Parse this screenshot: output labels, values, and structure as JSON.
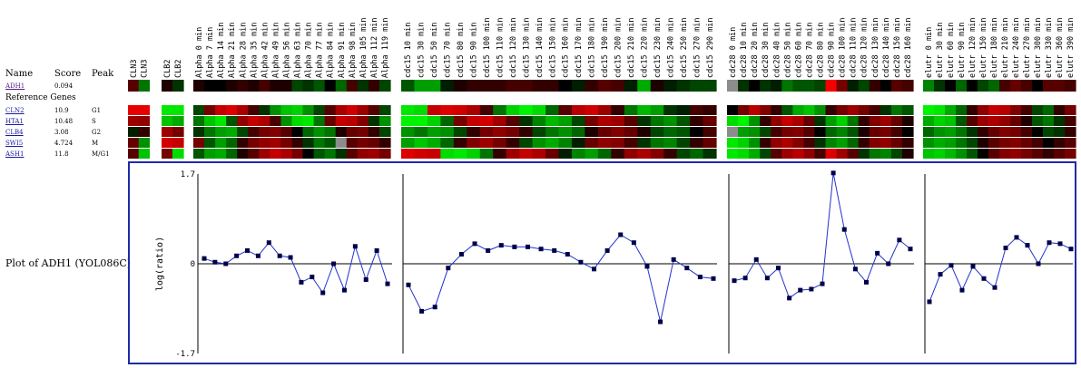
{
  "table": {
    "name_header": "Name",
    "score_header": "Score",
    "peak_header": "Peak",
    "reference_genes_label": "Reference Genes",
    "query": {
      "name": "ADH1",
      "score": "0.094",
      "peak": ""
    },
    "reference": [
      {
        "name": "CLN2",
        "score": "10.9",
        "peak": "G1"
      },
      {
        "name": "HTA1",
        "score": "10.48",
        "peak": "S"
      },
      {
        "name": "CLB4",
        "score": "3.08",
        "peak": "G2"
      },
      {
        "name": "SWI5",
        "score": "4.724",
        "peak": "M"
      },
      {
        "name": "ASH1",
        "score": "11.8",
        "peak": "M/G1"
      }
    ]
  },
  "plot_label": "Plot of ADH1 (YOL086C)",
  "colors": {
    "frame": "#1e2aa8",
    "line": "#2233cc",
    "marker": "#00004a"
  },
  "header_groups": [
    {
      "id": "cln3",
      "labels": [
        "CLN3",
        "CLN3"
      ]
    },
    {
      "id": "clb2",
      "labels": [
        "CLB2",
        "CLB2"
      ]
    },
    {
      "id": "alpha",
      "labels": [
        "Alpha 0 min",
        "Alpha 7 min",
        "Alpha 14 min",
        "Alpha 21 min",
        "Alpha 28 min",
        "Alpha 35 min",
        "Alpha 42 min",
        "Alpha 49 min",
        "Alpha 56 min",
        "Alpha 63 min",
        "Alpha 70 min",
        "Alpha 77 min",
        "Alpha 84 min",
        "Alpha 91 min",
        "Alpha 98 min",
        "Alpha 105 min",
        "Alpha 112 min",
        "Alpha 119 min"
      ]
    },
    {
      "id": "cdc15",
      "labels": [
        "cdc15 10 min",
        "cdc15 30 min",
        "cdc15 50 min",
        "cdc15 70 min",
        "cdc15 80 min",
        "cdc15 90 min",
        "cdc15 100 min",
        "cdc15 110 min",
        "cdc15 120 min",
        "cdc15 130 min",
        "cdc15 140 min",
        "cdc15 150 min",
        "cdc15 160 min",
        "cdc15 170 min",
        "cdc15 180 min",
        "cdc15 190 min",
        "cdc15 200 min",
        "cdc15 210 min",
        "cdc15 220 min",
        "cdc15 230 min",
        "cdc15 240 min",
        "cdc15 250 min",
        "cdc15 270 min",
        "cdc15 290 min"
      ]
    },
    {
      "id": "cdc28",
      "labels": [
        "cdc28 0 min",
        "cdc28 10 min",
        "cdc28 20 min",
        "cdc28 30 min",
        "cdc28 40 min",
        "cdc28 50 min",
        "cdc28 60 min",
        "cdc28 70 min",
        "cdc28 80 min",
        "cdc28 90 min",
        "cdc28 100 min",
        "cdc28 110 min",
        "cdc28 120 min",
        "cdc28 130 min",
        "cdc28 140 min",
        "cdc28 150 min",
        "cdc28 160 min"
      ]
    },
    {
      "id": "elutr",
      "labels": [
        "elutr 0 min",
        "elutr 30 min",
        "elutr 60 min",
        "elutr 90 min",
        "elutr 120 min",
        "elutr 150 min",
        "elutr 180 min",
        "elutr 210 min",
        "elutr 240 min",
        "elutr 270 min",
        "elutr 300 min",
        "elutr 330 min",
        "elutr 360 min",
        "elutr 390 min"
      ]
    }
  ],
  "heatmap": {
    "scale_max": 1.7,
    "rows": [
      {
        "gene": "ADH1",
        "values": {
          "cln3": [
            0.4,
            -0.6
          ],
          "clb2": [
            0.1,
            -0.2
          ],
          "alpha": [
            0.1,
            0.0,
            0.0,
            0.1,
            0.2,
            0.1,
            0.3,
            0.1,
            0.1,
            -0.3,
            -0.2,
            -0.4,
            0.0,
            -0.5,
            0.3,
            -0.2,
            0.2,
            -0.3
          ],
          "cdc15": [
            -0.4,
            -0.9,
            -0.9,
            -0.1,
            0.1,
            0.2,
            0.2,
            0.2,
            0.3,
            0.3,
            0.2,
            0.2,
            0.0,
            -0.1,
            0.2,
            0.4,
            0.3,
            -0.1,
            -1.0,
            0.1,
            -0.1,
            -0.2,
            -0.3,
            -0.3
          ],
          "cdc28": [
            -0.3,
            -0.2,
            0.0,
            -0.2,
            -0.1,
            -0.6,
            -0.4,
            -0.4,
            -0.3,
            1.6,
            0.6,
            -0.1,
            -0.3,
            0.2,
            0.0,
            0.4,
            0.3
          ],
          "elutr": [
            -0.7,
            -0.2,
            -0.0,
            -0.5,
            0.0,
            -0.3,
            -0.5,
            0.3,
            0.5,
            0.3,
            0.0,
            0.4,
            0.4,
            0.3
          ]
        }
      },
      {
        "gene": "CLN2",
        "values": {
          "cln3": [
            1.5,
            1.5
          ],
          "clb2": [
            -1.5,
            -1.5
          ],
          "alpha": [
            -0.3,
            0.6,
            1.2,
            1.4,
            1.0,
            0.3,
            -0.2,
            -0.8,
            -1.2,
            -1.3,
            -0.8,
            -0.3,
            0.4,
            1.0,
            1.3,
            0.9,
            0.4,
            -0.3
          ],
          "cdc15": [
            -1.5,
            -1.4,
            1.2,
            1.4,
            1.3,
            1.0,
            0.3,
            -0.6,
            -1.3,
            -1.6,
            -1.4,
            -0.5,
            0.4,
            1.1,
            1.3,
            0.9,
            0.2,
            -0.6,
            -1.1,
            -0.9,
            -0.2,
            -0.1,
            0.3,
            0.2
          ],
          "cdc28": [
            0.0,
            0.6,
            1.1,
            0.7,
            0.2,
            -0.4,
            -1.0,
            -1.2,
            -0.8,
            0.2,
            0.6,
            0.9,
            0.6,
            0.3,
            -0.2,
            -0.6,
            -0.4
          ],
          "elutr": [
            -1.6,
            -1.5,
            -1.0,
            -0.5,
            0.2,
            0.8,
            1.2,
            1.1,
            0.7,
            0.3,
            -0.3,
            -0.5,
            0.2,
            0.6
          ]
        }
      },
      {
        "gene": "HTA1",
        "values": {
          "cln3": [
            0.9,
            0.8
          ],
          "clb2": [
            -1.2,
            -1.0
          ],
          "alpha": [
            -0.6,
            -1.2,
            -1.5,
            -0.4,
            0.8,
            1.2,
            1.0,
            0.3,
            -0.8,
            -1.4,
            -1.5,
            -0.6,
            0.5,
            1.2,
            1.1,
            0.7,
            -0.2,
            -0.8
          ],
          "cdc15": [
            -1.6,
            -1.6,
            -1.3,
            -0.5,
            0.6,
            1.2,
            1.3,
            0.9,
            0.4,
            -0.2,
            -0.7,
            -1.1,
            -0.9,
            -0.3,
            0.6,
            1.0,
            0.9,
            0.4,
            -0.2,
            -0.6,
            -0.8,
            -0.4,
            0.2,
            0.5
          ],
          "cdc28": [
            -1.4,
            -1.6,
            -0.8,
            0.2,
            0.8,
            1.2,
            1.0,
            0.5,
            -0.2,
            -0.9,
            -1.3,
            -0.6,
            0.2,
            0.7,
            0.9,
            0.5,
            0.1
          ],
          "elutr": [
            -1.0,
            -1.3,
            -1.2,
            -0.4,
            0.4,
            0.9,
            1.0,
            0.8,
            0.5,
            0.1,
            -0.4,
            -0.6,
            -0.2,
            0.3
          ]
        }
      },
      {
        "gene": "CLB4",
        "values": {
          "cln3": [
            -0.1,
            0.2
          ],
          "clb2": [
            0.9,
            0.6
          ],
          "alpha": [
            -0.2,
            -0.6,
            -0.9,
            -1.0,
            -0.3,
            0.3,
            0.6,
            0.7,
            0.4,
            0.0,
            -0.5,
            -0.8,
            -0.6,
            0.1,
            0.5,
            0.6,
            0.2,
            -0.3
          ],
          "cdc15": [
            -0.8,
            -0.6,
            -0.9,
            -0.8,
            -0.3,
            0.2,
            0.6,
            0.8,
            0.6,
            0.2,
            -0.3,
            -0.6,
            -0.8,
            -0.5,
            0.1,
            0.5,
            0.7,
            0.5,
            0.1,
            -0.3,
            -0.5,
            -0.4,
            0.0,
            0.3
          ],
          "cdc28": [
            -0.5,
            -0.9,
            -0.8,
            -0.3,
            0.3,
            0.6,
            0.7,
            0.4,
            0.0,
            -0.5,
            -0.7,
            -0.4,
            0.1,
            0.5,
            0.6,
            0.3,
            0.0
          ],
          "elutr": [
            -0.5,
            -0.8,
            -0.9,
            -0.6,
            -0.2,
            0.2,
            0.5,
            0.7,
            0.6,
            0.3,
            0.0,
            -0.3,
            -0.2,
            0.2
          ]
        }
      },
      {
        "gene": "SWI5",
        "values": {
          "cln3": [
            0.5,
            -0.8
          ],
          "clb2": [
            1.3,
            1.2
          ],
          "alpha": [
            0.6,
            -0.4,
            -0.9,
            -0.5,
            0.2,
            0.6,
            0.8,
            0.9,
            0.6,
            0.2,
            -0.2,
            -0.6,
            -0.4,
            0.0,
            0.4,
            0.6,
            0.5,
            0.2
          ],
          "cdc15": [
            -0.9,
            -1.2,
            -1.0,
            -0.5,
            0.2,
            0.7,
            0.9,
            0.6,
            0.2,
            -0.3,
            -0.8,
            -1.0,
            -0.7,
            -0.1,
            0.5,
            0.8,
            0.7,
            0.3,
            -0.2,
            -0.6,
            -0.7,
            -0.3,
            0.2,
            0.5
          ],
          "cdc28": [
            -1.5,
            -1.3,
            -0.8,
            0.2,
            0.8,
            1.0,
            0.7,
            0.3,
            -0.2,
            -0.7,
            -0.9,
            -0.5,
            0.2,
            0.7,
            0.8,
            0.5,
            0.2
          ],
          "elutr": [
            -0.8,
            -1.0,
            -0.9,
            -0.6,
            -0.3,
            0.1,
            0.4,
            0.6,
            0.7,
            0.5,
            0.3,
            0.0,
            0.2,
            0.4
          ]
        }
      },
      {
        "gene": "ASH1",
        "values": {
          "cln3": [
            0.4,
            -1.2
          ],
          "clb2": [
            0.6,
            -1.4
          ],
          "alpha": [
            -0.4,
            -0.9,
            -1.0,
            -0.5,
            0.1,
            0.4,
            0.9,
            1.2,
            1.0,
            0.6,
            0.0,
            -0.4,
            -0.6,
            -0.2,
            0.4,
            0.8,
            0.9,
            0.6
          ],
          "cdc15": [
            1.4,
            1.3,
            1.2,
            -1.4,
            -1.5,
            -1.3,
            -0.6,
            0.2,
            0.9,
            1.2,
            1.0,
            0.5,
            -0.1,
            -0.7,
            -0.9,
            -0.5,
            0.2,
            0.8,
            1.0,
            0.7,
            0.2,
            -0.3,
            -0.5,
            -0.2
          ],
          "cdc28": [
            -1.5,
            -1.4,
            -1.0,
            -0.3,
            0.4,
            0.9,
            1.1,
            0.8,
            0.3,
            1.4,
            0.9,
            0.4,
            -0.2,
            -0.6,
            -0.7,
            -0.3,
            0.1
          ],
          "elutr": [
            -1.2,
            -1.3,
            -1.1,
            -0.8,
            -0.4,
            0.0,
            0.4,
            0.7,
            0.8,
            0.6,
            0.4,
            0.2,
            0.4,
            0.6
          ]
        }
      }
    ],
    "missing": [
      {
        "row": 0,
        "group": "cdc28",
        "index": 0
      },
      {
        "row": 3,
        "group": "cdc28",
        "index": 0
      },
      {
        "row": 4,
        "group": "alpha",
        "index": 13
      }
    ]
  },
  "chart_data": {
    "type": "line",
    "ylabel": "log(ratio)",
    "ylim": [
      -1.7,
      1.7
    ],
    "yticks": [
      "1.7",
      "0",
      "-1.7"
    ],
    "panels": [
      {
        "id": "alpha",
        "values": [
          0.1,
          0.03,
          0.0,
          0.15,
          0.25,
          0.15,
          0.4,
          0.15,
          0.12,
          -0.35,
          -0.25,
          -0.55,
          0.0,
          -0.5,
          0.33,
          -0.3,
          0.25,
          -0.38
        ]
      },
      {
        "id": "cdc15",
        "values": [
          -0.4,
          -0.9,
          -0.82,
          -0.08,
          0.18,
          0.38,
          0.25,
          0.35,
          0.32,
          0.32,
          0.28,
          0.25,
          0.18,
          0.03,
          -0.1,
          0.25,
          0.55,
          0.4,
          -0.05,
          -1.1,
          0.08,
          -0.08,
          -0.25,
          -0.28
        ]
      },
      {
        "id": "cdc28",
        "values": [
          -0.32,
          -0.27,
          0.08,
          -0.27,
          -0.08,
          -0.65,
          -0.5,
          -0.48,
          -0.38,
          1.72,
          0.65,
          -0.1,
          -0.35,
          0.2,
          0.0,
          0.45,
          0.28
        ]
      },
      {
        "id": "elutr",
        "values": [
          -0.72,
          -0.2,
          -0.03,
          -0.5,
          -0.05,
          -0.28,
          -0.45,
          0.3,
          0.5,
          0.35,
          0.0,
          0.4,
          0.38,
          0.28
        ]
      }
    ]
  }
}
